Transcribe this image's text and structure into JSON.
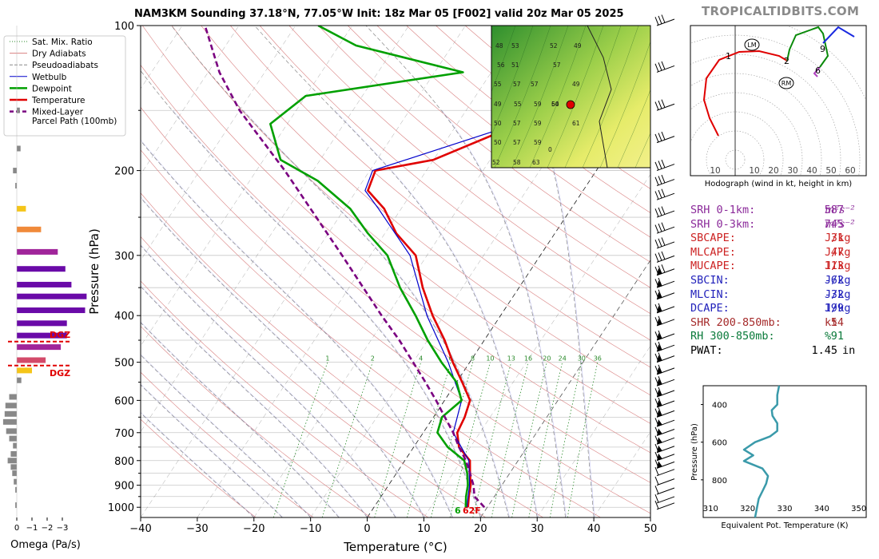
{
  "brand": "TROPICALTIDBITS.COM",
  "title": "NAM3KM Sounding 37.18°N, 77.05°W Init: 18z Mar 05 [F002] valid 20z Mar 05 2025",
  "legend": {
    "items": [
      {
        "label": "Sat. Mix. Ratio",
        "color": "#2a8a2a",
        "style": "dotted"
      },
      {
        "label": "Dry Adiabats",
        "color": "#d98080",
        "style": "solid"
      },
      {
        "label": "Pseudoadiabats",
        "color": "#888888",
        "style": "dashed"
      },
      {
        "label": "Wetbulb",
        "color": "#0000cc",
        "style": "solid"
      },
      {
        "label": "Dewpoint",
        "color": "#00a000",
        "style": "bold"
      },
      {
        "label": "Temperature",
        "color": "#e00000",
        "style": "bold"
      },
      {
        "label": "Mixed-Layer",
        "color": "#7a0080",
        "style": "bolddash"
      },
      {
        "label": "Parcel Path (100mb)",
        "color": "",
        "style": "none"
      }
    ]
  },
  "chart_data": [
    {
      "type": "line",
      "name": "skewt",
      "xlabel": "Temperature (°C)",
      "ylabel": "Pressure (hPa)",
      "xlim": [
        -40,
        50
      ],
      "ylim": [
        1050,
        100
      ],
      "y_scale": "log",
      "x_ticks": [
        "−40",
        "−30",
        "−20",
        "−10",
        "0",
        "10",
        "20",
        "30",
        "40",
        "50"
      ],
      "y_ticks": [
        "100",
        "200",
        "300",
        "400",
        "500",
        "600",
        "700",
        "800",
        "900",
        "1000"
      ],
      "series": [
        {
          "name": "Temperature",
          "color": "#e00000",
          "points": [
            [
              1000,
              16.6
            ],
            [
              950,
              15.5
            ],
            [
              900,
              14.5
            ],
            [
              850,
              13
            ],
            [
              800,
              11.5
            ],
            [
              750,
              8
            ],
            [
              700,
              6
            ],
            [
              650,
              5.5
            ],
            [
              600,
              4.5
            ],
            [
              550,
              1
            ],
            [
              500,
              -3
            ],
            [
              450,
              -7
            ],
            [
              400,
              -12
            ],
            [
              350,
              -17
            ],
            [
              300,
              -22
            ],
            [
              270,
              -28
            ],
            [
              240,
              -33
            ],
            [
              220,
              -38
            ],
            [
              200,
              -39
            ],
            [
              190,
              -30
            ],
            [
              160,
              -19
            ],
            [
              140,
              -19
            ],
            [
              120,
              -21
            ],
            [
              100,
              -23
            ]
          ]
        },
        {
          "name": "Wetbulb",
          "color": "#0000cc",
          "points": [
            [
              1000,
              16.4
            ],
            [
              900,
              14.3
            ],
            [
              800,
              11.3
            ],
            [
              700,
              5.3
            ],
            [
              600,
              3
            ],
            [
              500,
              -3.8
            ],
            [
              400,
              -13
            ],
            [
              300,
              -23
            ],
            [
              240,
              -34
            ],
            [
              220,
              -38.5
            ],
            [
              200,
              -39.5
            ],
            [
              160,
              -19.5
            ],
            [
              130,
              -20.5
            ],
            [
              100,
              -23.5
            ]
          ]
        },
        {
          "name": "Dewpoint",
          "color": "#00a000",
          "points": [
            [
              1000,
              16.2
            ],
            [
              950,
              15
            ],
            [
              900,
              14
            ],
            [
              850,
              12.5
            ],
            [
              800,
              10.5
            ],
            [
              750,
              6
            ],
            [
              700,
              2.5
            ],
            [
              650,
              1.5
            ],
            [
              600,
              3
            ],
            [
              550,
              0
            ],
            [
              500,
              -5
            ],
            [
              450,
              -10
            ],
            [
              400,
              -15
            ],
            [
              350,
              -21
            ],
            [
              300,
              -27
            ],
            [
              270,
              -33
            ],
            [
              240,
              -39
            ],
            [
              210,
              -48
            ],
            [
              190,
              -57
            ],
            [
              160,
              -63
            ],
            [
              140,
              -60
            ],
            [
              125,
              -35
            ],
            [
              110,
              -57
            ],
            [
              100,
              -66
            ]
          ]
        },
        {
          "name": "Mixed-Layer Parcel Path (100mb)",
          "color": "#7a0080",
          "points": [
            [
              1000,
              19.5
            ],
            [
              950,
              16.5
            ],
            [
              900,
              15
            ],
            [
              850,
              13
            ],
            [
              800,
              10.8
            ],
            [
              750,
              8
            ],
            [
              700,
              5.3
            ],
            [
              650,
              2
            ],
            [
              600,
              -1.5
            ],
            [
              550,
              -5.5
            ],
            [
              500,
              -10
            ],
            [
              450,
              -15
            ],
            [
              400,
              -21
            ],
            [
              350,
              -27.5
            ],
            [
              300,
              -35
            ],
            [
              250,
              -44
            ],
            [
              200,
              -55
            ],
            [
              150,
              -70
            ],
            [
              125,
              -78
            ],
            [
              100,
              -86
            ]
          ]
        }
      ],
      "surface_labels": {
        "dewpoint": "6",
        "temperature": "62F"
      },
      "mixing_ratio_labels": [
        "1",
        "2",
        "4",
        "6",
        "8",
        "10",
        "13",
        "16",
        "20",
        "24",
        "30",
        "36"
      ],
      "grid": true
    },
    {
      "type": "line",
      "name": "hodograph",
      "xlabel": "Hodograph (wind in kt, height in km)",
      "x_ticks": [
        "10",
        "10",
        "20",
        "30",
        "40",
        "50",
        "60"
      ],
      "height_labels": [
        "1",
        "2",
        "6",
        "9"
      ],
      "markers": [
        "LM",
        "RM"
      ]
    },
    {
      "type": "bar",
      "name": "omega",
      "xlabel": "Omega (Pa/s)",
      "x_ticks": [
        "0",
        "−1",
        "−2",
        "−3"
      ],
      "dgz_label": "DGZ",
      "dgz_label_2": "DGZ",
      "bars": [
        {
          "p": 150,
          "v": -0.2
        },
        {
          "p": 180,
          "v": -0.25
        },
        {
          "p": 200,
          "v": 0.25
        },
        {
          "p": 215,
          "v": 0.1
        },
        {
          "p": 240,
          "v": -0.6
        },
        {
          "p": 265,
          "v": -1.6
        },
        {
          "p": 295,
          "v": -2.7
        },
        {
          "p": 320,
          "v": -3.2
        },
        {
          "p": 345,
          "v": -3.6
        },
        {
          "p": 365,
          "v": -4.6
        },
        {
          "p": 390,
          "v": -4.5
        },
        {
          "p": 415,
          "v": -3.3
        },
        {
          "p": 440,
          "v": -3.3
        },
        {
          "p": 465,
          "v": -2.9
        },
        {
          "p": 495,
          "v": -1.9
        },
        {
          "p": 520,
          "v": -1.0
        },
        {
          "p": 545,
          "v": -0.3
        },
        {
          "p": 590,
          "v": 0.5
        },
        {
          "p": 615,
          "v": 0.75
        },
        {
          "p": 640,
          "v": 0.8
        },
        {
          "p": 665,
          "v": 0.9
        },
        {
          "p": 695,
          "v": 0.7
        },
        {
          "p": 720,
          "v": 0.5
        },
        {
          "p": 745,
          "v": 0.25
        },
        {
          "p": 775,
          "v": 0.4
        },
        {
          "p": 800,
          "v": 0.6
        },
        {
          "p": 825,
          "v": 0.4
        },
        {
          "p": 850,
          "v": 0.3
        },
        {
          "p": 885,
          "v": 0.2
        },
        {
          "p": 920,
          "v": 0.1
        },
        {
          "p": 990,
          "v": 0.1
        }
      ]
    },
    {
      "type": "line",
      "name": "theta_e",
      "xlabel": "Equivalent Pot. Temperature (K)",
      "ylabel": "Pressure (hPa)",
      "xlim": [
        308,
        352
      ],
      "ylim": [
        1000,
        300
      ],
      "x_ticks": [
        "310",
        "320",
        "330",
        "340",
        "350"
      ],
      "y_ticks": [
        "400",
        "600",
        "800"
      ],
      "points": [
        [
          300,
          328.5
        ],
        [
          350,
          328
        ],
        [
          400,
          328
        ],
        [
          430,
          326.5
        ],
        [
          460,
          326.7
        ],
        [
          500,
          328
        ],
        [
          540,
          328
        ],
        [
          570,
          326
        ],
        [
          600,
          322
        ],
        [
          640,
          319
        ],
        [
          670,
          321.5
        ],
        [
          700,
          319
        ],
        [
          740,
          324
        ],
        [
          780,
          325.5
        ],
        [
          820,
          325
        ],
        [
          860,
          324
        ],
        [
          900,
          323
        ],
        [
          950,
          322.5
        ],
        [
          1000,
          322
        ]
      ]
    },
    {
      "type": "heatmap",
      "name": "inset-map",
      "station_labels": [
        "48",
        "53",
        "52",
        "49",
        "56",
        "51",
        "57",
        "49",
        "55",
        "57",
        "57",
        "54",
        "49",
        "55",
        "59",
        "60",
        "50",
        "57",
        "59",
        "61",
        "50",
        "57",
        "59",
        "52",
        "58",
        "63",
        "0"
      ]
    }
  ],
  "params": [
    {
      "label": "SRH 0-1km:",
      "value": "587",
      "unit": "m²s⁻²",
      "color": "#8b2a9a",
      "italic": true
    },
    {
      "label": "SRH 0-3km:",
      "value": "745",
      "unit": "m²s⁻²",
      "color": "#8b2a9a",
      "italic": true
    },
    {
      "label": "SBCAPE:",
      "value": "31",
      "unit": "J/kg",
      "color": "#cc2222"
    },
    {
      "label": "MLCAPE:",
      "value": "47",
      "unit": "J/kg",
      "color": "#cc2222"
    },
    {
      "label": "MUCAPE:",
      "value": "113",
      "unit": "J/kg",
      "color": "#cc2222"
    },
    {
      "label": "SBCIN:",
      "value": "-62",
      "unit": "J/kg",
      "color": "#2222bb"
    },
    {
      "label": "MLCIN:",
      "value": "-32",
      "unit": "J/kg",
      "color": "#2222bb"
    },
    {
      "label": "DCAPE:",
      "value": "199",
      "unit": "J/kg",
      "color": "#2222bb"
    },
    {
      "label": "SHR 200-850mb:",
      "value": "54",
      "unit": "kt",
      "color": "#a52a2a"
    },
    {
      "label": "RH 300-850mb:",
      "value": "91",
      "unit": "%",
      "color": "#0a7a3a"
    },
    {
      "label": "PWAT:",
      "value": "1.45",
      "unit": "in",
      "color": "#000000"
    }
  ]
}
